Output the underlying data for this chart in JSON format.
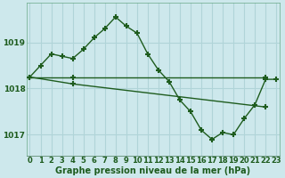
{
  "line1_x": [
    0,
    1,
    2,
    3,
    4,
    5,
    6,
    7,
    8,
    9,
    10,
    11,
    12,
    13,
    14,
    15,
    16,
    17,
    18,
    19,
    20,
    21,
    22,
    23
  ],
  "line1_y": [
    1018.25,
    1018.5,
    1018.75,
    1018.7,
    1018.65,
    1018.85,
    1019.1,
    1019.3,
    1019.55,
    1019.35,
    1019.2,
    1018.75,
    1018.4,
    1018.15,
    1017.75,
    1017.5,
    1017.1,
    1016.9,
    1017.05,
    1017.0,
    1017.35,
    1017.65,
    1018.2,
    1018.2
  ],
  "line2_x": [
    0,
    4,
    22
  ],
  "line2_y": [
    1018.25,
    1018.25,
    1018.25
  ],
  "line3_x": [
    0,
    4,
    22
  ],
  "line3_y": [
    1018.25,
    1018.1,
    1017.6
  ],
  "bg_color": "#cde8ec",
  "plot_bg_color": "#cde8ec",
  "grid_color": "#b0d4d8",
  "line_color": "#1e5c1e",
  "marker": "+",
  "markersize": 4,
  "markeredgewidth": 1.5,
  "linewidth": 1.0,
  "ylabel_ticks": [
    1017,
    1018,
    1019
  ],
  "xlabel_ticks": [
    0,
    1,
    2,
    3,
    4,
    5,
    6,
    7,
    8,
    9,
    10,
    11,
    12,
    13,
    14,
    15,
    16,
    17,
    18,
    19,
    20,
    21,
    22,
    23
  ],
  "xlabel": "Graphe pression niveau de la mer (hPa)",
  "xlim": [
    -0.3,
    23.3
  ],
  "ylim": [
    1016.55,
    1019.85
  ],
  "tick_fontsize": 6.0,
  "xlabel_fontsize": 7.0
}
